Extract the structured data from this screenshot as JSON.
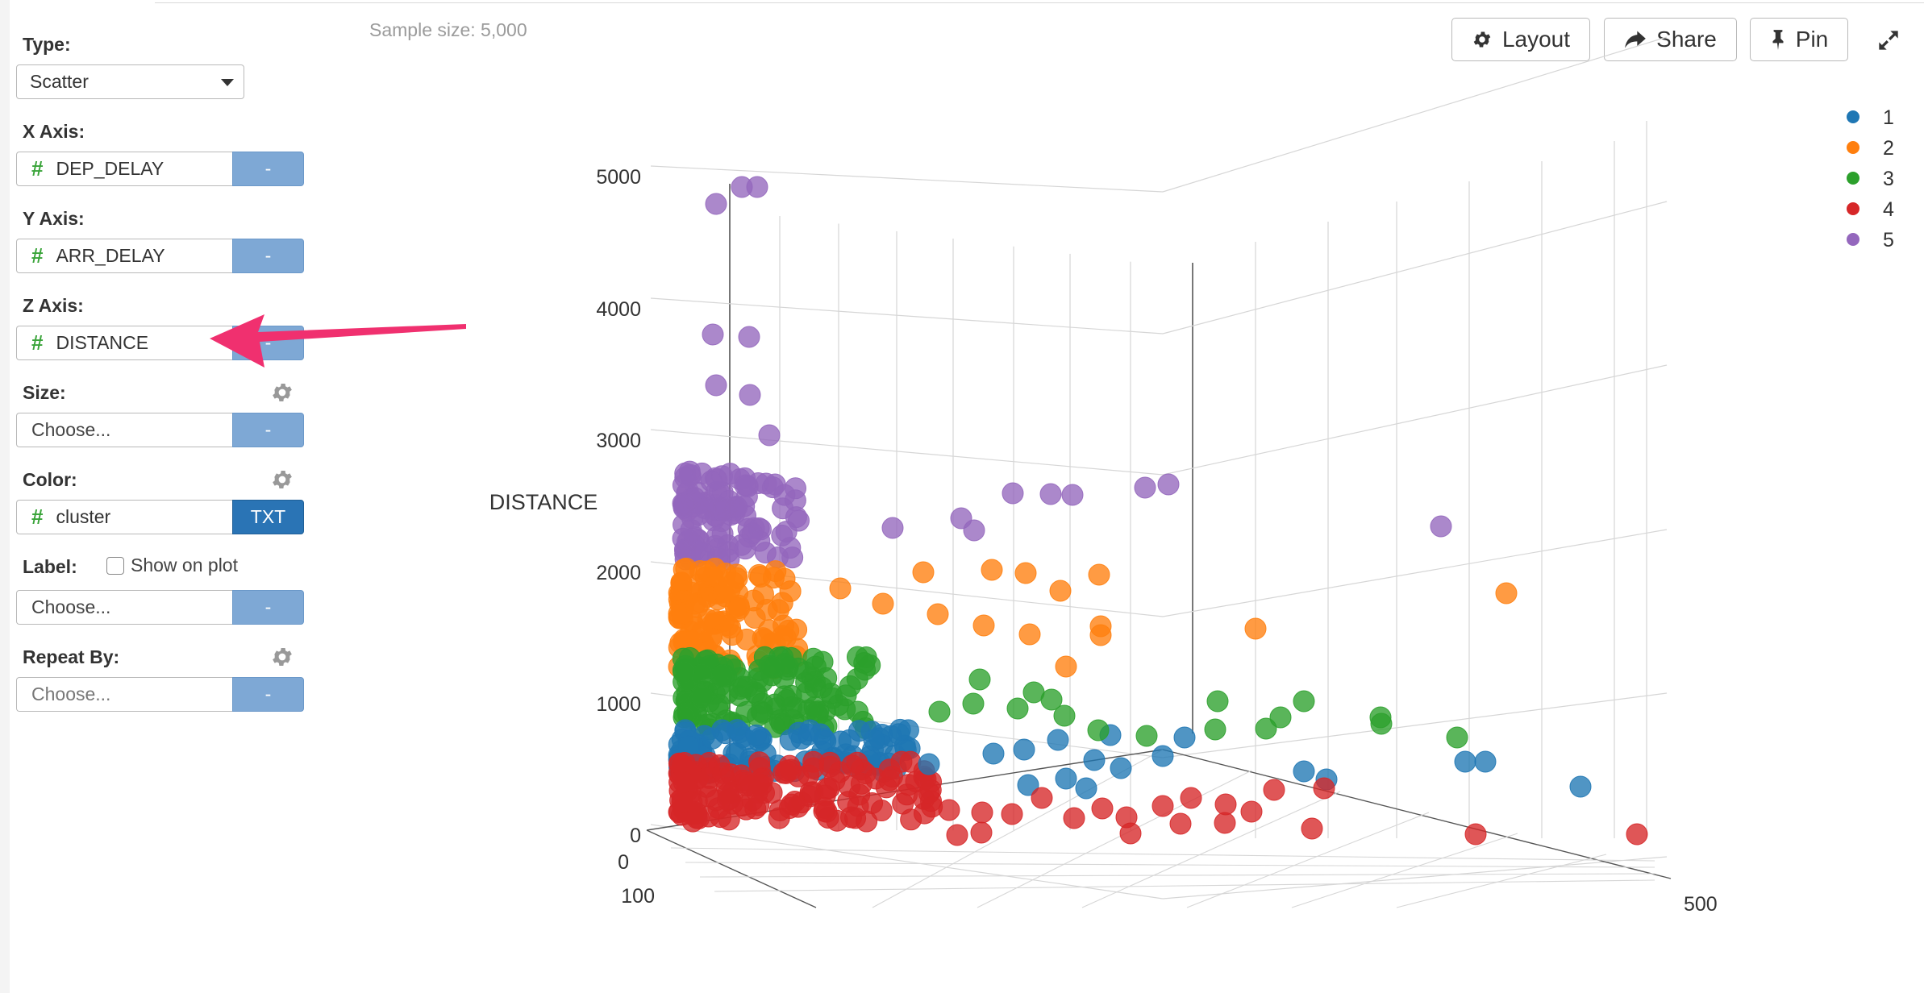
{
  "panel": {
    "type_label": "Type:",
    "type_value": "Scatter",
    "x_label": "X Axis:",
    "x_value": "DEP_DELAY",
    "y_label": "Y Axis:",
    "y_value": "ARR_DELAY",
    "z_label": "Z Axis:",
    "z_value": "DISTANCE",
    "size_label": "Size:",
    "size_placeholder": "Choose...",
    "color_label": "Color:",
    "color_value": "cluster",
    "color_type_button": "TXT",
    "label_label": "Label:",
    "show_on_plot": "Show on plot",
    "label_placeholder": "Choose...",
    "repeat_label": "Repeat By:",
    "repeat_placeholder": "Choose...",
    "minus_button": "-"
  },
  "sample_size": "Sample size: 5,000",
  "toolbar": {
    "layout": "Layout",
    "share": "Share",
    "pin": "Pin"
  },
  "icons": [
    "gear-icon",
    "share-arrow-icon",
    "pin-icon",
    "expand-icon",
    "annotation-arrow"
  ],
  "colors": {
    "accent": "#2a74b5",
    "minus_button": "#7ea8d5",
    "hash": "#3aa43a",
    "annotation_arrow": "#f0306f"
  },
  "chart_data": {
    "type": "scatter",
    "title": "",
    "zlabel": "DISTANCE",
    "z_ticks": [
      "0",
      "1000",
      "2000",
      "3000",
      "4000",
      "5000"
    ],
    "zlim": [
      0,
      5000
    ],
    "x_ticks_visible": [
      "0",
      "100"
    ],
    "y_ticks_visible": [
      "500"
    ],
    "legend_position": "top-right",
    "grid": true,
    "series": [
      {
        "name": "1",
        "color": "#1f77b4"
      },
      {
        "name": "2",
        "color": "#ff7f0e"
      },
      {
        "name": "3",
        "color": "#2ca02c"
      },
      {
        "name": "4",
        "color": "#d62728"
      },
      {
        "name": "5",
        "color": "#9467bd"
      }
    ]
  }
}
